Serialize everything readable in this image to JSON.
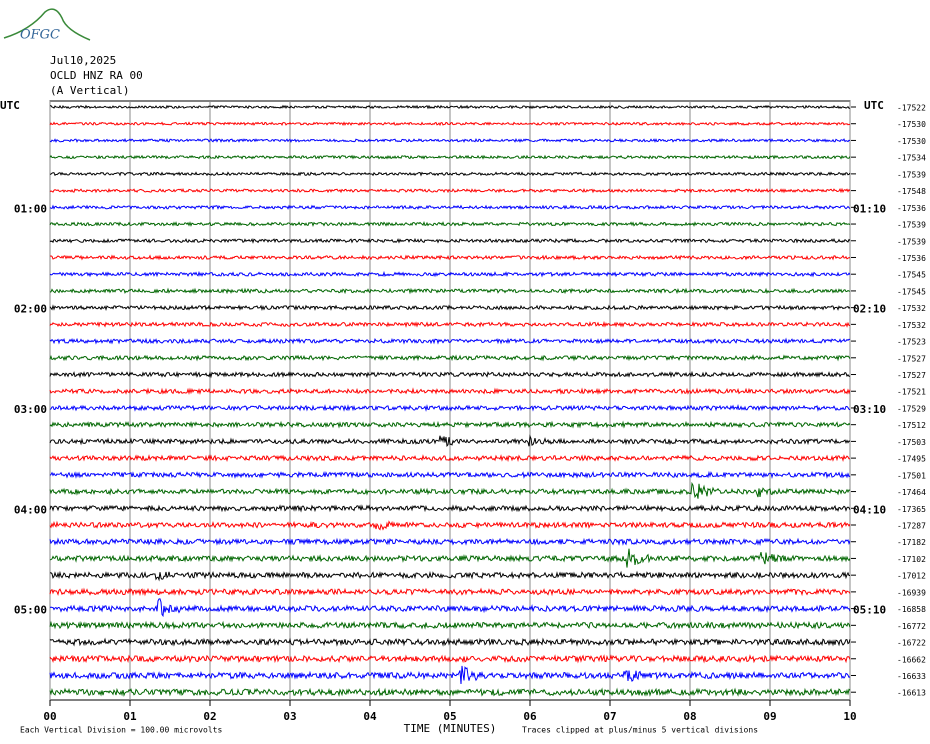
{
  "chart_data": {
    "type": "helicorder",
    "logo": "OFGC",
    "title": [
      "Jul10,2025",
      "OCLD HNZ RA 00",
      "(A Vertical)"
    ],
    "left_top": "UTC",
    "right_top": "UTC",
    "colors": [
      "#000000",
      "#ff0000",
      "#0000ff",
      "#006600"
    ],
    "left_labels": [
      {
        "row": 6,
        "label": "01:00"
      },
      {
        "row": 12,
        "label": "02:00"
      },
      {
        "row": 18,
        "label": "03:00"
      },
      {
        "row": 24,
        "label": "04:00"
      },
      {
        "row": 30,
        "label": "05:00"
      }
    ],
    "right_labels": [
      {
        "row": 6,
        "label": "01:10"
      },
      {
        "row": 12,
        "label": "02:10"
      },
      {
        "row": 18,
        "label": "03:10"
      },
      {
        "row": 24,
        "label": "04:10"
      },
      {
        "row": 30,
        "label": "05:10"
      }
    ],
    "offsets": [
      -17522,
      -17530,
      -17530,
      -17534,
      -17539,
      -17548,
      -17536,
      -17539,
      -17539,
      -17536,
      -17545,
      -17545,
      -17532,
      -17532,
      -17523,
      -17527,
      -17527,
      -17521,
      -17529,
      -17512,
      -17503,
      -17495,
      -17501,
      -17464,
      -17365,
      -17287,
      -17182,
      -17102,
      -17012,
      -16939,
      -16858,
      -16772,
      -16722,
      -16662,
      -16633,
      -16613
    ],
    "xlim": [
      0,
      10
    ],
    "xticks": [
      {
        "value": 0,
        "label": "00"
      },
      {
        "value": 1,
        "label": "01"
      },
      {
        "value": 2,
        "label": "02"
      },
      {
        "value": 3,
        "label": "03"
      },
      {
        "value": 4,
        "label": "04"
      },
      {
        "value": 5,
        "label": "05"
      },
      {
        "value": 6,
        "label": "06"
      },
      {
        "value": 7,
        "label": "07"
      },
      {
        "value": 8,
        "label": "08"
      },
      {
        "value": 9,
        "label": "09"
      },
      {
        "value": 10,
        "label": "10"
      }
    ],
    "xlabel": "TIME (MINUTES)",
    "footer_left": "Each Vertical Division =  100.00 microvolts",
    "footer_right": "Traces clipped at plus/minus 5 vertical divisions",
    "grid": true
  }
}
